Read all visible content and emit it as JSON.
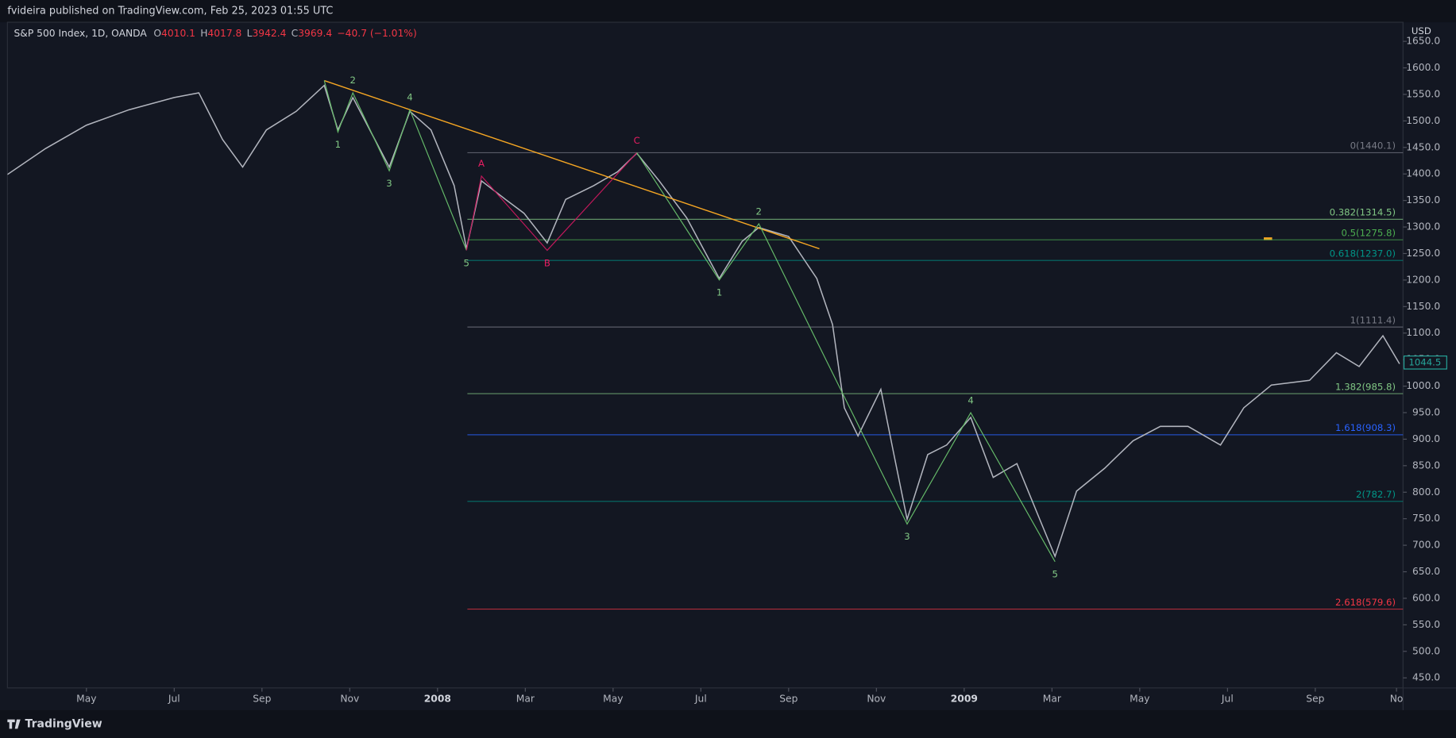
{
  "header": {
    "text": "fvideira published on TradingView.com, Feb 25, 2023 01:55 UTC"
  },
  "legend": {
    "symbol": "S&P 500 Index, 1D, OANDA",
    "o_label": "O",
    "open": 4010.1,
    "h_label": "H",
    "high": 4017.8,
    "l_label": "L",
    "low": 3942.4,
    "c_label": "C",
    "close": 3969.4,
    "change": "−40.7 (−1.01%)"
  },
  "footer": {
    "brand": "TradingView"
  },
  "chart_data": {
    "type": "line",
    "axis_unit": "USD",
    "x": [
      2.2,
      3.07,
      4,
      4.97,
      6,
      6.56,
      7.1,
      7.56,
      8.1,
      8.78,
      9.42,
      9.73,
      10.07,
      10.9,
      11.37,
      11.85,
      12.38,
      12.66,
      13.0,
      13.55,
      13.97,
      14.5,
      14.92,
      15.56,
      16.1,
      16.54,
      17.05,
      17.68,
      18.42,
      18.94,
      19.32,
      20,
      20.64,
      21,
      21.27,
      21.58,
      22.1,
      22.4,
      22.7,
      23.17,
      23.6,
      24.15,
      24.66,
      25.2,
      25.72,
      26.07,
      26.56,
      27.2,
      27.85,
      28.47,
      29.1,
      29.84,
      30.37,
      31,
      31.87,
      32.48,
      33.0,
      33.54,
      33.92
    ],
    "series": [
      {
        "color": "#b2b5be",
        "values": [
          1399,
          1448,
          1492,
          1521,
          1544,
          1553,
          1465,
          1413,
          1483,
          1518,
          1567,
          1483,
          1544,
          1413,
          1518,
          1483,
          1378,
          1259,
          1387,
          1352,
          1326,
          1270,
          1352,
          1378,
          1404,
          1439,
          1387,
          1317,
          1203,
          1273,
          1299,
          1282,
          1203,
          1116,
          959,
          906,
          994,
          871,
          749,
          871,
          889,
          941,
          828,
          854,
          749,
          679,
          802,
          845,
          897,
          924,
          924,
          889,
          959,
          1002,
          1011,
          1063,
          1037,
          1095,
          1042
        ]
      }
    ],
    "xlim": [
      2.2,
      34
    ],
    "xticks": [
      {
        "value": 4,
        "label": "May"
      },
      {
        "value": 6,
        "label": "Jul"
      },
      {
        "value": 8,
        "label": "Sep"
      },
      {
        "value": 10,
        "label": "Nov"
      },
      {
        "value": 12,
        "label": "2008"
      },
      {
        "value": 14,
        "label": "Mar"
      },
      {
        "value": 16,
        "label": "May"
      },
      {
        "value": 18,
        "label": "Jul"
      },
      {
        "value": 20,
        "label": "Sep"
      },
      {
        "value": 22,
        "label": "Nov"
      },
      {
        "value": 24,
        "label": "2009"
      },
      {
        "value": 26,
        "label": "Mar"
      },
      {
        "value": 28,
        "label": "May"
      },
      {
        "value": 30,
        "label": "Jul"
      },
      {
        "value": 32,
        "label": "Sep"
      },
      {
        "value": 33.85,
        "label": "No"
      }
    ],
    "ylim": [
      431,
      1686
    ],
    "yticks": [
      {
        "value": 450,
        "label": "450.0"
      },
      {
        "value": 500,
        "label": "500.0"
      },
      {
        "value": 550,
        "label": "550.0"
      },
      {
        "value": 600,
        "label": "600.0"
      },
      {
        "value": 650,
        "label": "650.0"
      },
      {
        "value": 700,
        "label": "700.0"
      },
      {
        "value": 750,
        "label": "750.0"
      },
      {
        "value": 800,
        "label": "800.0"
      },
      {
        "value": 850,
        "label": "850.0"
      },
      {
        "value": 900,
        "label": "900.0"
      },
      {
        "value": 950,
        "label": "950.0"
      },
      {
        "value": 1000,
        "label": "1000.0"
      },
      {
        "value": 1050,
        "label": "1050.0"
      },
      {
        "value": 1100,
        "label": "1100.0"
      },
      {
        "value": 1150,
        "label": "1150.0"
      },
      {
        "value": 1200,
        "label": "1200.0"
      },
      {
        "value": 1250,
        "label": "1250.0"
      },
      {
        "value": 1300,
        "label": "1300.0"
      },
      {
        "value": 1350,
        "label": "1350.0"
      },
      {
        "value": 1400,
        "label": "1400.0"
      },
      {
        "value": 1450,
        "label": "1450.0"
      },
      {
        "value": 1500,
        "label": "1500.0"
      },
      {
        "value": 1550,
        "label": "1550.0"
      },
      {
        "value": 1600,
        "label": "1600.0"
      },
      {
        "value": 1650,
        "label": "1650.0"
      }
    ],
    "last_price": 1044.5,
    "fib_start": 12.68,
    "fib_levels": [
      {
        "label": "0(1440.1)",
        "value": 1440.1,
        "color": "#787b86"
      },
      {
        "label": "0.382(1314.5)",
        "value": 1314.5,
        "color": "#81c784"
      },
      {
        "label": "0.5(1275.8)",
        "value": 1275.8,
        "color": "#4caf50"
      },
      {
        "label": "0.618(1237.0)",
        "value": 1237.0,
        "color": "#009688"
      },
      {
        "label": "1(1111.4)",
        "value": 1111.4,
        "color": "#787b86"
      },
      {
        "label": "1.382(985.8)",
        "value": 985.8,
        "color": "#81c784"
      },
      {
        "label": "1.618(908.3)",
        "value": 908.3,
        "color": "#2962ff"
      },
      {
        "label": "2(782.7)",
        "value": 782.7,
        "color": "#009688"
      },
      {
        "label": "2.618(579.6)",
        "value": 579.6,
        "color": "#f23645"
      }
    ],
    "trendline": {
      "color": "#f5a623",
      "x": [
        9.42,
        20.7
      ],
      "values": [
        1576,
        1259
      ]
    },
    "waves": [
      {
        "color": "#66bb6a",
        "label_color": "#81c784",
        "points": [
          {
            "x": 9.42,
            "value": 1576,
            "label": null
          },
          {
            "x": 9.73,
            "value": 1479,
            "label": "1"
          },
          {
            "x": 10.07,
            "value": 1553,
            "label": "2"
          },
          {
            "x": 10.9,
            "value": 1406,
            "label": "3"
          },
          {
            "x": 11.37,
            "value": 1521,
            "label": "4"
          },
          {
            "x": 12.66,
            "value": 1256,
            "label": "5"
          }
        ]
      },
      {
        "color": "#c2185b",
        "label_color": "#e91e63",
        "points": [
          {
            "x": 12.66,
            "value": 1256,
            "label": null
          },
          {
            "x": 13.0,
            "value": 1396,
            "label": "A"
          },
          {
            "x": 14.5,
            "value": 1256,
            "label": "B"
          },
          {
            "x": 16.54,
            "value": 1440,
            "label": "C"
          }
        ]
      },
      {
        "color": "#66bb6a",
        "label_color": "#81c784",
        "points": [
          {
            "x": 16.54,
            "value": 1440,
            "label": null
          },
          {
            "x": 18.42,
            "value": 1200,
            "label": "1"
          },
          {
            "x": 19.32,
            "value": 1306,
            "label": "2"
          },
          {
            "x": 22.7,
            "value": 740,
            "label": "3"
          },
          {
            "x": 24.15,
            "value": 950,
            "label": "4"
          },
          {
            "x": 26.07,
            "value": 669,
            "label": "5"
          }
        ]
      }
    ]
  }
}
